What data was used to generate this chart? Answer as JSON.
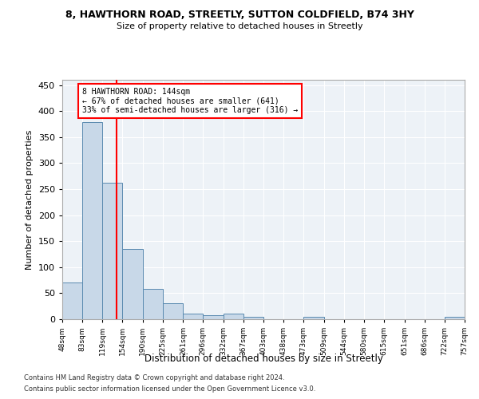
{
  "title_line1": "8, HAWTHORN ROAD, STREETLY, SUTTON COLDFIELD, B74 3HY",
  "title_line2": "Size of property relative to detached houses in Streetly",
  "xlabel": "Distribution of detached houses by size in Streetly",
  "ylabel": "Number of detached properties",
  "bar_color": "#c8d8e8",
  "bar_edge_color": "#5a8ab0",
  "vline_x": 144,
  "vline_color": "red",
  "annotation_text": "8 HAWTHORN ROAD: 144sqm\n← 67% of detached houses are smaller (641)\n33% of semi-detached houses are larger (316) →",
  "annotation_box_color": "red",
  "annotation_text_color": "black",
  "footnote1": "Contains HM Land Registry data © Crown copyright and database right 2024.",
  "footnote2": "Contains public sector information licensed under the Open Government Licence v3.0.",
  "bin_edges": [
    48,
    83,
    119,
    154,
    190,
    225,
    261,
    296,
    332,
    367,
    403,
    438,
    473,
    509,
    544,
    580,
    615,
    651,
    686,
    722,
    757
  ],
  "bin_heights": [
    70,
    378,
    262,
    135,
    59,
    30,
    10,
    7,
    10,
    5,
    0,
    0,
    4,
    0,
    0,
    0,
    0,
    0,
    0,
    4
  ],
  "xlim": [
    48,
    757
  ],
  "ylim": [
    0,
    460
  ],
  "yticks": [
    0,
    50,
    100,
    150,
    200,
    250,
    300,
    350,
    400,
    450
  ],
  "background_color": "#edf2f7"
}
